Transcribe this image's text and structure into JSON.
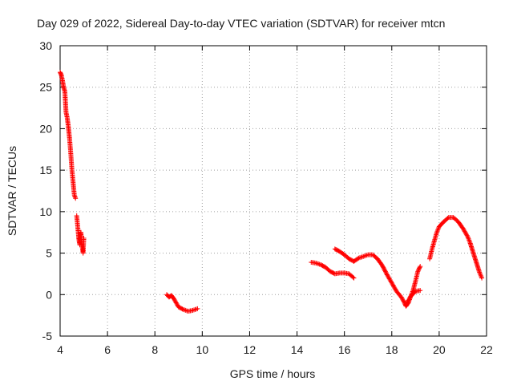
{
  "chart_data": {
    "type": "scatter",
    "title": "Day 029 of 2022, Sidereal Day-to-day VTEC variation (SDTVAR) for receiver mtcn",
    "xlabel": "GPS time / hours",
    "ylabel": "SDTVAR / TECUs",
    "xlim": [
      4,
      22
    ],
    "ylim": [
      -5,
      30
    ],
    "xticks": [
      "4",
      "6",
      "8",
      "10",
      "12",
      "14",
      "16",
      "18",
      "20",
      "22"
    ],
    "yticks": [
      "-5",
      "0",
      "5",
      "10",
      "15",
      "20",
      "25",
      "30"
    ],
    "grid": true,
    "legend": "none",
    "marker": "+",
    "series": [
      {
        "name": "SDTVAR",
        "color": "#ff0000",
        "segments": [
          [
            [
              4.0,
              26.8
            ],
            [
              4.05,
              26.5
            ],
            [
              4.1,
              25.8
            ],
            [
              4.15,
              25.0
            ],
            [
              4.2,
              24.5
            ],
            [
              4.25,
              22.0
            ],
            [
              4.3,
              21.3
            ],
            [
              4.35,
              20.2
            ],
            [
              4.4,
              18.8
            ],
            [
              4.45,
              17.0
            ],
            [
              4.5,
              15.0
            ],
            [
              4.55,
              13.5
            ],
            [
              4.6,
              12.0
            ],
            [
              4.65,
              11.6
            ]
          ],
          [
            [
              4.7,
              9.5
            ],
            [
              4.75,
              8.0
            ],
            [
              4.78,
              7.0
            ],
            [
              4.8,
              6.5
            ],
            [
              4.83,
              6.0
            ],
            [
              4.85,
              6.8
            ],
            [
              4.88,
              7.5
            ],
            [
              4.9,
              6.5
            ],
            [
              4.93,
              5.8
            ],
            [
              4.95,
              5.5
            ],
            [
              4.97,
              5.0
            ],
            [
              5.0,
              6.8
            ]
          ],
          [
            [
              8.5,
              0.0
            ],
            [
              8.6,
              -0.3
            ],
            [
              8.7,
              -0.1
            ],
            [
              8.8,
              -0.5
            ],
            [
              8.9,
              -1.0
            ],
            [
              9.0,
              -1.5
            ],
            [
              9.2,
              -1.8
            ],
            [
              9.4,
              -2.0
            ],
            [
              9.6,
              -1.9
            ],
            [
              9.8,
              -1.7
            ]
          ],
          [
            [
              14.6,
              3.9
            ],
            [
              14.8,
              3.8
            ],
            [
              15.0,
              3.6
            ],
            [
              15.2,
              3.3
            ],
            [
              15.4,
              2.8
            ],
            [
              15.6,
              2.5
            ],
            [
              15.8,
              2.6
            ],
            [
              16.0,
              2.6
            ],
            [
              16.2,
              2.5
            ],
            [
              16.4,
              2.0
            ]
          ],
          [
            [
              15.6,
              5.5
            ],
            [
              15.8,
              5.2
            ],
            [
              16.0,
              4.8
            ],
            [
              16.2,
              4.3
            ],
            [
              16.4,
              4.0
            ],
            [
              16.6,
              4.4
            ],
            [
              16.8,
              4.6
            ],
            [
              17.0,
              4.8
            ],
            [
              17.2,
              4.8
            ],
            [
              17.4,
              4.3
            ],
            [
              17.6,
              3.5
            ],
            [
              17.8,
              2.4
            ],
            [
              18.0,
              1.4
            ],
            [
              18.2,
              0.4
            ],
            [
              18.4,
              -0.3
            ],
            [
              18.5,
              -0.8
            ],
            [
              18.6,
              -1.4
            ],
            [
              18.7,
              -1.0
            ],
            [
              18.8,
              -0.2
            ],
            [
              18.9,
              0.5
            ],
            [
              19.0,
              1.6
            ],
            [
              19.1,
              2.8
            ],
            [
              19.2,
              3.4
            ]
          ],
          [
            [
              18.6,
              -1.2
            ],
            [
              18.8,
              -0.2
            ],
            [
              19.0,
              0.4
            ],
            [
              19.2,
              0.5
            ]
          ],
          [
            [
              19.6,
              4.3
            ],
            [
              19.7,
              5.5
            ],
            [
              19.8,
              6.5
            ],
            [
              19.9,
              7.5
            ],
            [
              20.0,
              8.2
            ],
            [
              20.2,
              8.8
            ],
            [
              20.4,
              9.3
            ],
            [
              20.6,
              9.3
            ],
            [
              20.8,
              8.8
            ],
            [
              21.0,
              8.0
            ],
            [
              21.2,
              7.0
            ],
            [
              21.3,
              6.3
            ],
            [
              21.4,
              5.4
            ],
            [
              21.5,
              4.5
            ],
            [
              21.6,
              3.6
            ],
            [
              21.7,
              2.7
            ],
            [
              21.8,
              2.0
            ]
          ]
        ]
      }
    ]
  }
}
